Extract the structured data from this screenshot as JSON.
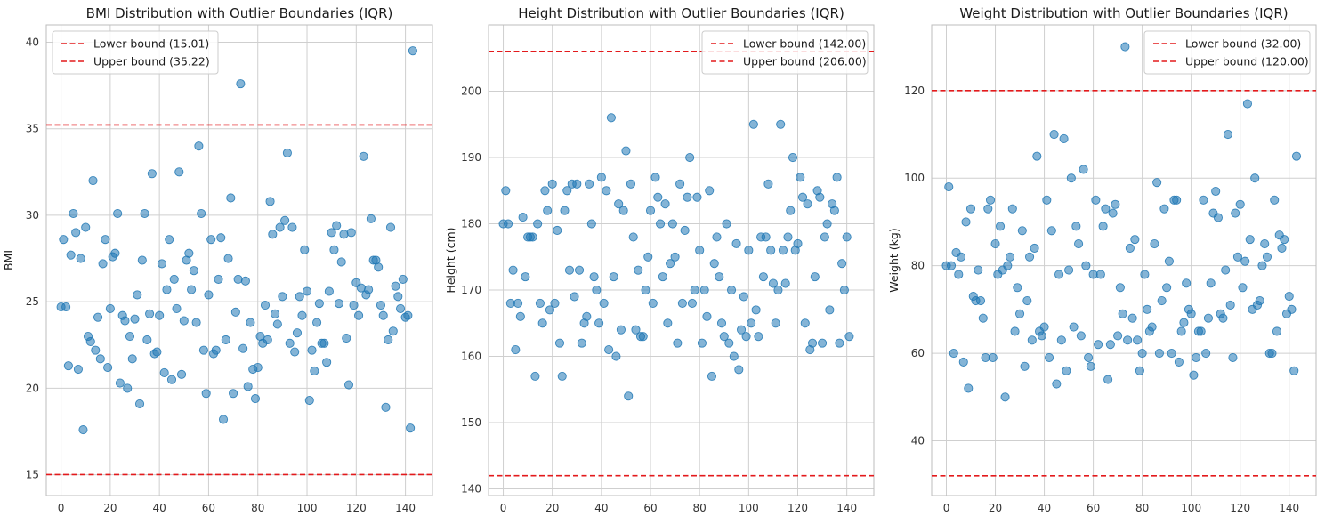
{
  "colors": {
    "points": "#1f77b4",
    "bounds": "#e31a1c"
  },
  "chart_data": [
    {
      "type": "scatter",
      "title": "BMI Distribution with Outlier Boundaries (IQR)",
      "xlabel": "",
      "ylabel": "BMI",
      "xlim": [
        -6,
        151
      ],
      "ylim": [
        13.8,
        41.0
      ],
      "xticks": [
        0,
        20,
        40,
        60,
        80,
        100,
        120,
        140
      ],
      "yticks": [
        15,
        20,
        25,
        30,
        35,
        40
      ],
      "grid": true,
      "legend_position": "top-left",
      "bounds": [
        {
          "label": "Lower bound (15.01)",
          "value": 15.01
        },
        {
          "label": "Upper bound (35.22)",
          "value": 35.22
        }
      ],
      "y": [
        24.7,
        28.6,
        24.7,
        21.3,
        27.7,
        30.1,
        29.0,
        21.1,
        27.5,
        17.6,
        29.3,
        23.0,
        22.7,
        32.0,
        22.2,
        24.1,
        21.7,
        27.2,
        28.6,
        21.2,
        24.6,
        27.6,
        27.8,
        30.1,
        20.3,
        24.2,
        23.9,
        20.0,
        23.0,
        21.7,
        24.0,
        25.4,
        19.1,
        27.4,
        30.1,
        22.8,
        24.3,
        32.4,
        22.0,
        22.1,
        24.2,
        27.2,
        20.9,
        25.7,
        28.6,
        20.5,
        26.3,
        24.6,
        32.5,
        20.8,
        23.9,
        27.4,
        27.8,
        25.7,
        26.8,
        23.8,
        34.0,
        30.1,
        22.2,
        19.7,
        25.4,
        28.6,
        22.0,
        22.2,
        26.3,
        28.7,
        18.2,
        22.8,
        27.5,
        31.0,
        19.7,
        24.4,
        26.3,
        37.6,
        22.3,
        26.2,
        20.1,
        23.8,
        21.1,
        19.4,
        21.2,
        23.0,
        22.6,
        24.8,
        22.8,
        30.8,
        28.9,
        24.3,
        23.7,
        29.3,
        25.3,
        29.7,
        33.6,
        22.6,
        29.3,
        22.1,
        23.2,
        25.3,
        24.2,
        28.0,
        25.6,
        19.3,
        22.2,
        21.0,
        23.8,
        24.9,
        22.6,
        22.6,
        21.5,
        25.6,
        29.0,
        28.0,
        29.4,
        24.9,
        27.3,
        28.9,
        22.9,
        20.2,
        29.0,
        24.8,
        26.1,
        24.2,
        25.8,
        33.4,
        25.4,
        25.7,
        29.8,
        27.4,
        27.4,
        27.0,
        24.8,
        24.2,
        18.9,
        22.8,
        29.3,
        23.3,
        25.9,
        25.3,
        24.6,
        26.3,
        24.1,
        24.2,
        17.7,
        39.5
      ]
    },
    {
      "type": "scatter",
      "title": "Height Distribution with Outlier Boundaries (IQR)",
      "xlabel": "",
      "ylabel": "Height (cm)",
      "xlim": [
        -6,
        151
      ],
      "ylim": [
        139.0,
        210.0
      ],
      "xticks": [
        0,
        20,
        40,
        60,
        80,
        100,
        120,
        140
      ],
      "yticks": [
        140,
        150,
        160,
        170,
        180,
        190,
        200
      ],
      "grid": true,
      "legend_position": "top-right",
      "bounds": [
        {
          "label": "Lower bound (142.00)",
          "value": 142.0
        },
        {
          "label": "Upper bound (206.00)",
          "value": 206.0
        }
      ],
      "y": [
        180,
        185,
        180,
        168,
        173,
        161,
        168,
        166,
        181,
        172,
        178,
        178,
        178,
        157,
        180,
        168,
        165,
        185,
        182,
        167,
        186,
        168,
        179,
        162,
        157,
        182,
        185,
        173,
        186,
        169,
        186,
        173,
        162,
        165,
        166,
        186,
        180,
        172,
        170,
        165,
        187,
        168,
        185,
        161,
        196,
        172,
        160,
        183,
        164,
        182,
        191,
        154,
        186,
        178,
        164,
        173,
        163,
        163,
        170,
        175,
        182,
        168,
        187,
        184,
        180,
        172,
        183,
        165,
        174,
        180,
        175,
        162,
        186,
        168,
        179,
        184,
        190,
        168,
        170,
        184,
        176,
        162,
        170,
        166,
        185,
        157,
        174,
        178,
        172,
        165,
        163,
        180,
        162,
        170,
        160,
        177,
        158,
        164,
        169,
        163,
        176,
        165,
        195,
        167,
        163,
        178,
        172,
        178,
        186,
        176,
        171,
        165,
        170,
        195,
        176,
        171,
        178,
        182,
        190,
        176,
        177,
        187,
        184,
        165,
        183,
        161,
        162,
        172,
        185,
        184,
        162,
        178,
        180,
        167,
        183,
        182,
        187,
        162,
        174,
        170,
        178,
        163
      ]
    },
    {
      "type": "scatter",
      "title": "Weight Distribution with Outlier Boundaries (IQR)",
      "xlabel": "",
      "ylabel": "Weight (kg)",
      "xlim": [
        -6,
        151
      ],
      "ylim": [
        27.5,
        135.0
      ],
      "xticks": [
        0,
        20,
        40,
        60,
        80,
        100,
        120,
        140
      ],
      "yticks": [
        40,
        60,
        80,
        100,
        120
      ],
      "grid": true,
      "legend_position": "top-right",
      "bounds": [
        {
          "label": "Lower bound (32.00)",
          "value": 32.0
        },
        {
          "label": "Upper bound (120.00)",
          "value": 120.0
        }
      ],
      "y": [
        80,
        98,
        80,
        60,
        83,
        78,
        82,
        58,
        90,
        52,
        93,
        73,
        72,
        79,
        72,
        68,
        59,
        93,
        95,
        59,
        85,
        78,
        89,
        79,
        50,
        80,
        82,
        93,
        65,
        75,
        69,
        88,
        57,
        72,
        82,
        63,
        84,
        105,
        65,
        64,
        66,
        95,
        59,
        88,
        110,
        53,
        78,
        63,
        109,
        56,
        79,
        100,
        66,
        89,
        85,
        64,
        102,
        80,
        59,
        57,
        78,
        95,
        62,
        78,
        89,
        93,
        54,
        62,
        92,
        94,
        64,
        75,
        69,
        130,
        63,
        84,
        68,
        86,
        63,
        56,
        60,
        78,
        70,
        65,
        66,
        85,
        99,
        60,
        72,
        93,
        75,
        81,
        60,
        95,
        95,
        58,
        65,
        67,
        76,
        70,
        69,
        55,
        59,
        65,
        65,
        95,
        60,
        68,
        76,
        92,
        97,
        91,
        69,
        68,
        79,
        110,
        71,
        59,
        92,
        82,
        94,
        75,
        81,
        117,
        86,
        70,
        100,
        71,
        72,
        80,
        85,
        82,
        60,
        60,
        95,
        65,
        87,
        84,
        86,
        69,
        73,
        70,
        56,
        105
      ]
    }
  ]
}
